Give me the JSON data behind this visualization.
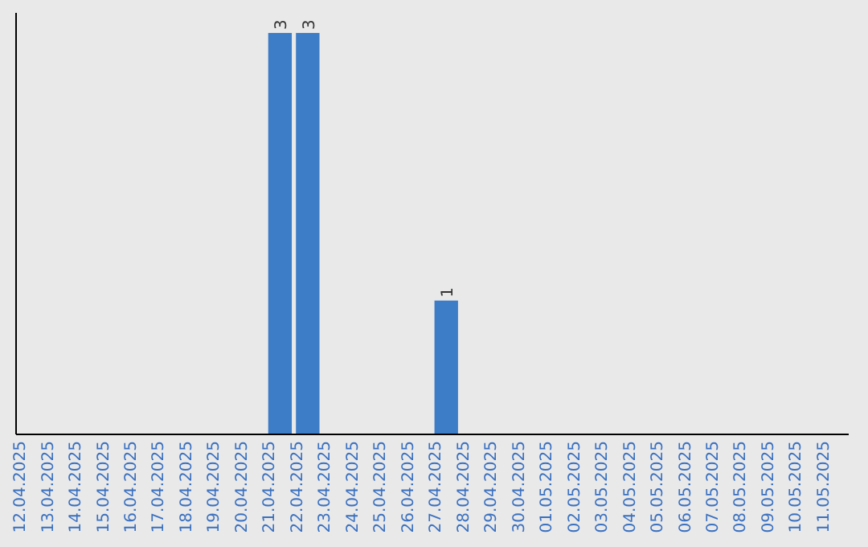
{
  "chart_data": {
    "type": "bar",
    "categories": [
      "12.04.2025",
      "13.04.2025",
      "14.04.2025",
      "15.04.2025",
      "16.04.2025",
      "17.04.2025",
      "18.04.2025",
      "19.04.2025",
      "20.04.2025",
      "21.04.2025",
      "22.04.2025",
      "23.04.2025",
      "24.04.2025",
      "25.04.2025",
      "26.04.2025",
      "27.04.2025",
      "28.04.2025",
      "29.04.2025",
      "30.04.2025",
      "01.05.2025",
      "02.05.2025",
      "03.05.2025",
      "04.05.2025",
      "05.05.2025",
      "06.05.2025",
      "07.05.2025",
      "08.05.2025",
      "09.05.2025",
      "10.05.2025",
      "11.05.2025"
    ],
    "values": [
      0,
      0,
      0,
      0,
      0,
      0,
      0,
      0,
      0,
      3,
      3,
      0,
      0,
      0,
      0,
      1,
      0,
      0,
      0,
      0,
      0,
      0,
      0,
      0,
      0,
      0,
      0,
      0,
      0,
      0
    ],
    "value_labels": [
      null,
      null,
      null,
      null,
      null,
      null,
      null,
      null,
      null,
      "3",
      "3",
      null,
      null,
      null,
      null,
      "1",
      null,
      null,
      null,
      null,
      null,
      null,
      null,
      null,
      null,
      null,
      null,
      null,
      null,
      null
    ],
    "color": "#3d7cc6"
  }
}
